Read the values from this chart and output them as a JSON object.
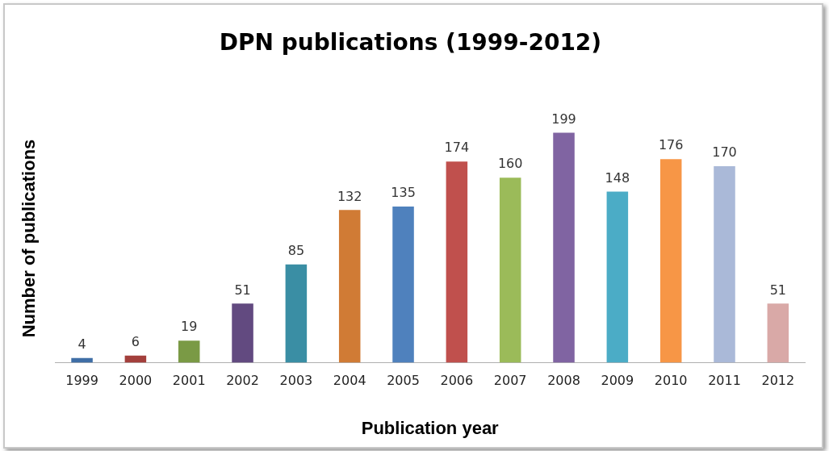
{
  "chart_data": {
    "type": "bar",
    "title": "DPN publications (1999-2012)",
    "xlabel": "Publication year",
    "ylabel": "Number of publications",
    "categories": [
      "1999",
      "2000",
      "2001",
      "2002",
      "2003",
      "2004",
      "2005",
      "2006",
      "2007",
      "2008",
      "2009",
      "2010",
      "2011",
      "2012"
    ],
    "values": [
      4,
      6,
      19,
      51,
      85,
      132,
      135,
      174,
      160,
      199,
      148,
      176,
      170,
      51
    ],
    "colors": [
      "#3f6ea6",
      "#a33f3c",
      "#7a9a45",
      "#624a80",
      "#3a8ea4",
      "#d07b35",
      "#4f81bd",
      "#c0504d",
      "#9bbb59",
      "#8064a2",
      "#4bacc6",
      "#f79646",
      "#aab9d8",
      "#d9a9a7"
    ],
    "data_labels": true,
    "grid": false,
    "legend": false
  }
}
